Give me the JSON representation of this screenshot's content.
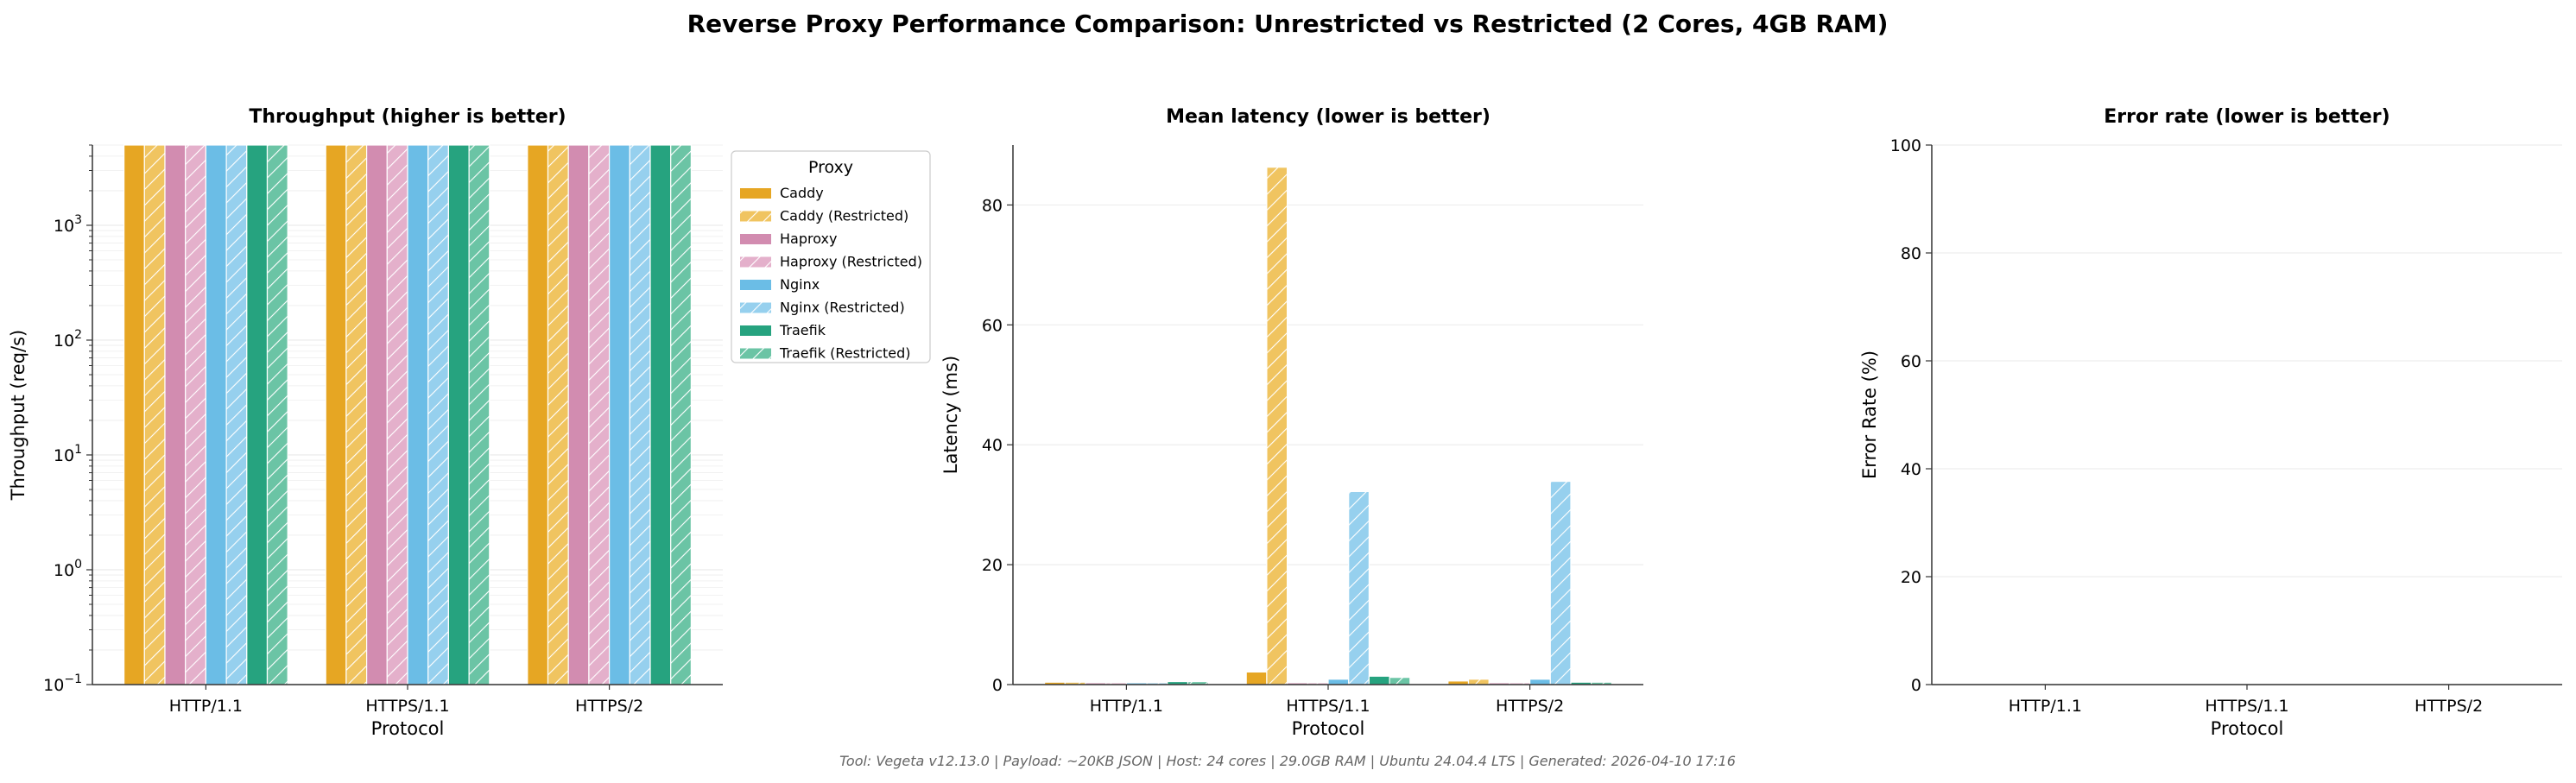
{
  "figure": {
    "title": "Reverse Proxy Performance Comparison: Unrestricted vs Restricted (2 Cores, 4GB RAM)",
    "footer": "Tool: Vegeta v12.13.0 | Payload: ~20KB JSON | Host: 24 cores | 29.0GB RAM | Ubuntu 24.04.4 LTS | Generated: 2026-04-10 17:16"
  },
  "legend": {
    "title": "Proxy"
  },
  "chart_data": [
    {
      "type": "bar",
      "title": "Throughput (higher is better)",
      "xlabel": "Protocol",
      "ylabel": "Throughput (req/s)",
      "yscale": "log",
      "ylim": [
        0.1,
        5000
      ],
      "yticks": [
        {
          "base": "10",
          "exp": "−1"
        },
        {
          "base": "10",
          "exp": "0"
        },
        {
          "base": "10",
          "exp": "1"
        },
        {
          "base": "10",
          "exp": "2"
        },
        {
          "base": "10",
          "exp": "3"
        }
      ],
      "categories": [
        "HTTP/1.1",
        "HTTPS/1.1",
        "HTTPS/2"
      ],
      "series": [
        {
          "name": "Caddy",
          "color": "#E6A623",
          "hatch": false,
          "values": [
            5000,
            5000,
            5000
          ]
        },
        {
          "name": "Caddy (Restricted)",
          "color": "#F0C460",
          "hatch": true,
          "values": [
            5000,
            5000,
            5000
          ]
        },
        {
          "name": "Haproxy",
          "color": "#D28CB0",
          "hatch": false,
          "values": [
            5000,
            5000,
            5000
          ]
        },
        {
          "name": "Haproxy (Restricted)",
          "color": "#E4B0CB",
          "hatch": true,
          "values": [
            5000,
            5000,
            5000
          ]
        },
        {
          "name": "Nginx",
          "color": "#6BBDE6",
          "hatch": false,
          "values": [
            5000,
            5000,
            5000
          ]
        },
        {
          "name": "Nginx (Restricted)",
          "color": "#96D0EE",
          "hatch": true,
          "values": [
            5000,
            5000,
            5000
          ]
        },
        {
          "name": "Traefik",
          "color": "#26A37F",
          "hatch": false,
          "values": [
            5000,
            5000,
            5000
          ]
        },
        {
          "name": "Traefik (Restricted)",
          "color": "#6BC4A5",
          "hatch": true,
          "values": [
            5000,
            5000,
            5000
          ]
        }
      ],
      "legend": "right-outside",
      "grid": true
    },
    {
      "type": "bar",
      "title": "Mean latency (lower is better)",
      "xlabel": "Protocol",
      "ylabel": "Latency (ms)",
      "yscale": "linear",
      "ylim": [
        0,
        90
      ],
      "yticks": [
        0,
        20,
        40,
        60,
        80
      ],
      "categories": [
        "HTTP/1.1",
        "HTTPS/1.1",
        "HTTPS/2"
      ],
      "series": [
        {
          "name": "Caddy",
          "values": [
            0.4,
            2.1,
            0.6
          ]
        },
        {
          "name": "Caddy (Restricted)",
          "values": [
            0.4,
            86.3,
            0.9
          ]
        },
        {
          "name": "Haproxy",
          "values": [
            0.3,
            0.3,
            0.3
          ]
        },
        {
          "name": "Haproxy (Restricted)",
          "values": [
            0.3,
            0.3,
            0.3
          ]
        },
        {
          "name": "Nginx",
          "values": [
            0.3,
            0.9,
            0.9
          ]
        },
        {
          "name": "Nginx (Restricted)",
          "values": [
            0.3,
            32.2,
            33.9
          ]
        },
        {
          "name": "Traefik",
          "values": [
            0.5,
            1.4,
            0.4
          ]
        },
        {
          "name": "Traefik (Restricted)",
          "values": [
            0.5,
            1.2,
            0.4
          ]
        }
      ],
      "grid": true
    },
    {
      "type": "bar",
      "title": "Error rate (lower is better)",
      "xlabel": "Protocol",
      "ylabel": "Error Rate (%)",
      "yscale": "linear",
      "ylim": [
        0,
        100
      ],
      "yticks": [
        0,
        20,
        40,
        60,
        80,
        100
      ],
      "categories": [
        "HTTP/1.1",
        "HTTPS/1.1",
        "HTTPS/2"
      ],
      "series": [
        {
          "name": "Caddy",
          "values": [
            0,
            0,
            0
          ]
        },
        {
          "name": "Caddy (Restricted)",
          "values": [
            0,
            0,
            0
          ]
        },
        {
          "name": "Haproxy",
          "values": [
            0,
            0,
            0
          ]
        },
        {
          "name": "Haproxy (Restricted)",
          "values": [
            0,
            0,
            0
          ]
        },
        {
          "name": "Nginx",
          "values": [
            0,
            0,
            0
          ]
        },
        {
          "name": "Nginx (Restricted)",
          "values": [
            0,
            0,
            0
          ]
        },
        {
          "name": "Traefik",
          "values": [
            0,
            0,
            0
          ]
        },
        {
          "name": "Traefik (Restricted)",
          "values": [
            0,
            0,
            0
          ]
        }
      ],
      "grid": true
    }
  ]
}
